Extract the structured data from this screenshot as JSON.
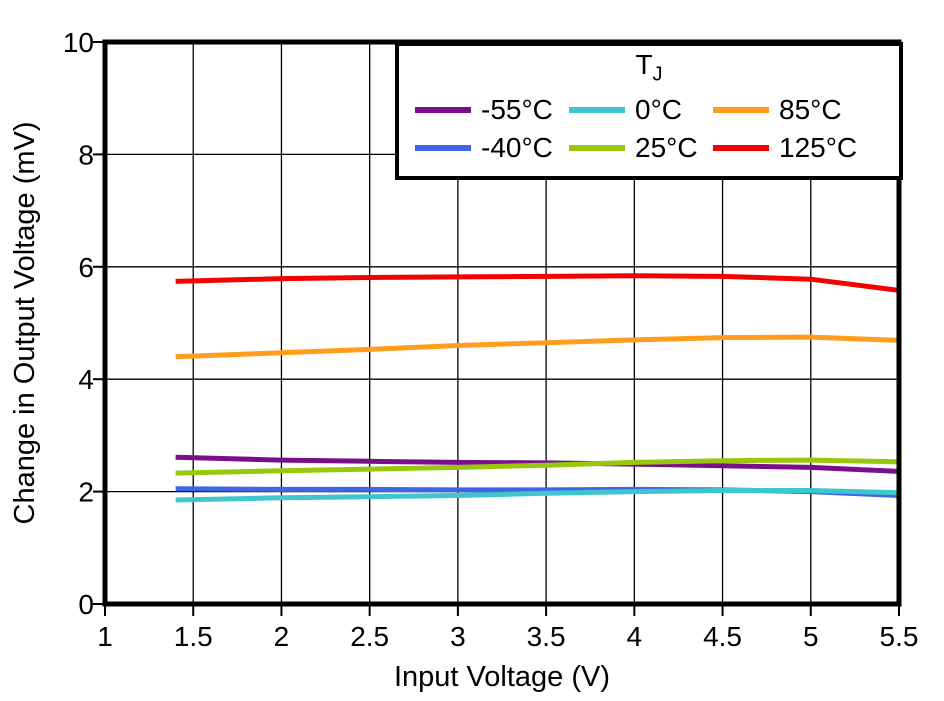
{
  "legend": {
    "title_main": "T",
    "title_sub": "J"
  },
  "chart_data": {
    "type": "line",
    "title": "",
    "xlabel": "Input Voltage (V)",
    "ylabel": "Change in Output Voltage (mV)",
    "xlim": [
      1,
      5.5
    ],
    "ylim": [
      0,
      10
    ],
    "x_ticks": [
      1,
      1.5,
      2,
      2.5,
      3,
      3.5,
      4,
      4.5,
      5,
      5.5
    ],
    "x_tick_labels": [
      "1",
      "1.5",
      "2",
      "2.5",
      "3",
      "3.5",
      "4",
      "4.5",
      "5",
      "5.5"
    ],
    "y_ticks": [
      0,
      2,
      4,
      6,
      8,
      10
    ],
    "y_tick_labels": [
      "0",
      "2",
      "4",
      "6",
      "8",
      "10"
    ],
    "grid": true,
    "legend_position": "top",
    "legend_title": "TJ",
    "x": [
      1.4,
      2.0,
      2.5,
      3.0,
      3.5,
      4.0,
      4.5,
      5.0,
      5.5
    ],
    "series": [
      {
        "name": "-55°C",
        "color": "#7A0F8C",
        "values": [
          2.61,
          2.56,
          2.54,
          2.52,
          2.51,
          2.49,
          2.46,
          2.43,
          2.36
        ]
      },
      {
        "name": "-40°C",
        "color": "#3E65E6",
        "values": [
          2.05,
          2.04,
          2.04,
          2.03,
          2.03,
          2.04,
          2.03,
          2.0,
          1.93
        ]
      },
      {
        "name": "0°C",
        "color": "#3EC5CE",
        "values": [
          1.85,
          1.89,
          1.91,
          1.93,
          1.97,
          2.0,
          2.02,
          2.02,
          1.98
        ]
      },
      {
        "name": "25°C",
        "color": "#97C80C",
        "values": [
          2.33,
          2.37,
          2.4,
          2.43,
          2.47,
          2.52,
          2.55,
          2.56,
          2.53
        ]
      },
      {
        "name": "85°C",
        "color": "#FF9E1E",
        "values": [
          4.4,
          4.47,
          4.53,
          4.6,
          4.65,
          4.7,
          4.74,
          4.75,
          4.69
        ]
      },
      {
        "name": "125°C",
        "color": "#F40000",
        "values": [
          5.74,
          5.79,
          5.81,
          5.82,
          5.83,
          5.84,
          5.83,
          5.78,
          5.58
        ]
      }
    ],
    "legend_row_major_order": [
      0,
      2,
      4,
      1,
      3,
      5
    ]
  }
}
